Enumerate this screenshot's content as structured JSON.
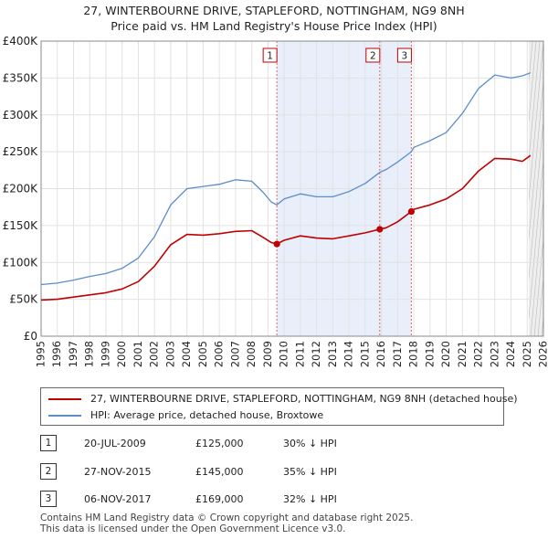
{
  "chart_data": {
    "type": "line",
    "title": "27, WINTERBOURNE DRIVE, STAPLEFORD, NOTTINGHAM, NG9 8NH",
    "subtitle": "Price paid vs. HM Land Registry's House Price Index (HPI)",
    "xlabel": "",
    "ylabel": "",
    "xlim": [
      1995,
      2026
    ],
    "ylim": [
      0,
      400000
    ],
    "yticks": [
      0,
      50000,
      100000,
      150000,
      200000,
      250000,
      300000,
      350000,
      400000
    ],
    "ytick_labels": [
      "£0",
      "£50K",
      "£100K",
      "£150K",
      "£200K",
      "£250K",
      "£300K",
      "£350K",
      "£400K"
    ],
    "xticks": [
      1995,
      1996,
      1997,
      1998,
      1999,
      2000,
      2001,
      2002,
      2003,
      2004,
      2005,
      2006,
      2007,
      2008,
      2009,
      2010,
      2011,
      2012,
      2013,
      2014,
      2015,
      2016,
      2017,
      2018,
      2019,
      2020,
      2021,
      2022,
      2023,
      2024,
      2025,
      2026
    ],
    "xtick_labels": [
      "1995",
      "1996",
      "1997",
      "1998",
      "1999",
      "2000",
      "2001",
      "2002",
      "2003",
      "2004",
      "2005",
      "2006",
      "2007",
      "2008",
      "2009",
      "2010",
      "2011",
      "2012",
      "2013",
      "2014",
      "2015",
      "2016",
      "2017",
      "2018",
      "2019",
      "2020",
      "2021",
      "2022",
      "2023",
      "2024",
      "2025",
      "2026"
    ],
    "grid": true,
    "shaded_range": [
      2009.55,
      2017.85
    ],
    "forecast_start": 2025.1,
    "series": [
      {
        "name": "27, WINTERBOURNE DRIVE, STAPLEFORD, NOTTINGHAM, NG9 8NH (detached house)",
        "color": "#c00000",
        "x": [
          1995,
          1996,
          1997,
          1998,
          1999,
          2000,
          2001,
          2002,
          2003,
          2004,
          2005,
          2006,
          2007,
          2008,
          2008.7,
          2009.2,
          2009.55,
          2010,
          2011,
          2012,
          2013,
          2014,
          2015,
          2015.9,
          2016.3,
          2017,
          2017.85,
          2018,
          2019,
          2020,
          2021,
          2022,
          2023,
          2024,
          2024.7,
          2025.2
        ],
        "y": [
          49000,
          50000,
          53000,
          56000,
          59000,
          64000,
          74000,
          95000,
          124000,
          138000,
          137000,
          139000,
          142000,
          143000,
          134000,
          127000,
          125000,
          130000,
          136000,
          133000,
          132000,
          136000,
          140000,
          145000,
          147000,
          155000,
          169000,
          172000,
          178000,
          186000,
          200000,
          224000,
          241000,
          240000,
          237000,
          245000
        ]
      },
      {
        "name": "HPI: Average price, detached house, Broxtowe",
        "color": "#5b8dc9",
        "x": [
          1995,
          1996,
          1997,
          1998,
          1999,
          2000,
          2001,
          2002,
          2003,
          2004,
          2005,
          2006,
          2007,
          2008,
          2008.7,
          2009.2,
          2009.55,
          2010,
          2011,
          2012,
          2013,
          2014,
          2015,
          2015.9,
          2016.3,
          2017,
          2017.85,
          2018,
          2019,
          2020,
          2021,
          2022,
          2023,
          2024,
          2024.7,
          2025.2
        ],
        "y": [
          70000,
          72000,
          76000,
          81000,
          85000,
          92000,
          106000,
          135000,
          178000,
          200000,
          203000,
          206000,
          212000,
          210000,
          195000,
          182000,
          178000,
          186000,
          193000,
          189000,
          189000,
          196000,
          207000,
          222000,
          226000,
          236000,
          250000,
          256000,
          265000,
          276000,
          302000,
          336000,
          354000,
          350000,
          353000,
          357000
        ]
      }
    ],
    "annotations": [
      {
        "label": "1",
        "x": 2009.55
      },
      {
        "label": "2",
        "x": 2015.9
      },
      {
        "label": "3",
        "x": 2017.85
      }
    ],
    "sale_points": [
      {
        "x": 2009.55,
        "y": 125000
      },
      {
        "x": 2015.9,
        "y": 145000
      },
      {
        "x": 2017.85,
        "y": 169000
      }
    ]
  },
  "legend": {
    "property_label": "27, WINTERBOURNE DRIVE, STAPLEFORD, NOTTINGHAM, NG9 8NH (detached house)",
    "hpi_label": "HPI: Average price, detached house, Broxtowe"
  },
  "sales": [
    {
      "num": "1",
      "date": "20-JUL-2009",
      "price": "£125,000",
      "hpi": "30% ↓ HPI"
    },
    {
      "num": "2",
      "date": "27-NOV-2015",
      "price": "£145,000",
      "hpi": "35% ↓ HPI"
    },
    {
      "num": "3",
      "date": "06-NOV-2017",
      "price": "£169,000",
      "hpi": "32% ↓ HPI"
    }
  ],
  "footer": {
    "line1": "Contains HM Land Registry data © Crown copyright and database right 2025.",
    "line2": "This data is licensed under the Open Government Licence v3.0."
  }
}
